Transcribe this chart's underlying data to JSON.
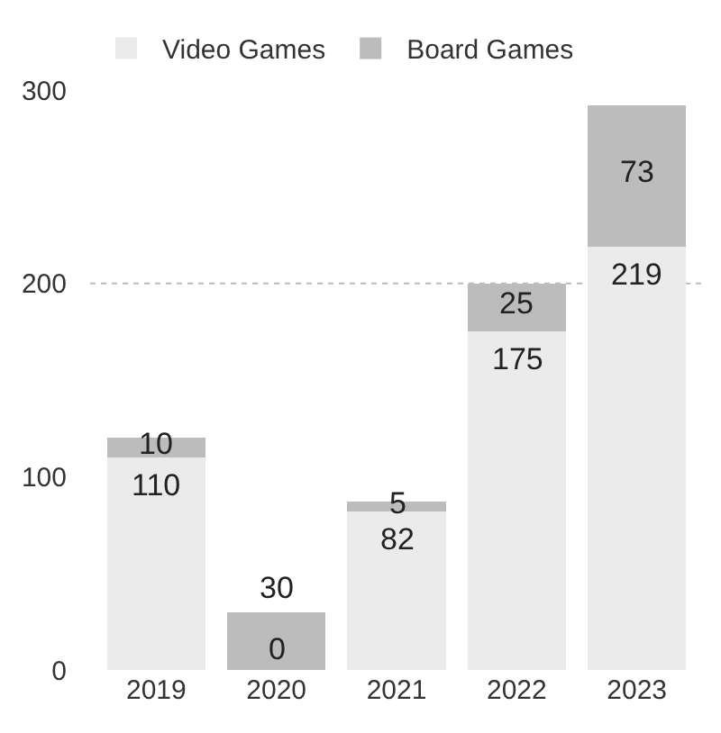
{
  "chart_data": {
    "type": "bar",
    "stacked": true,
    "categories": [
      "2019",
      "2020",
      "2021",
      "2022",
      "2023"
    ],
    "series": [
      {
        "name": "Video Games",
        "color": "#ebebeb",
        "values": [
          110,
          0,
          82,
          175,
          219
        ]
      },
      {
        "name": "Board Games",
        "color": "#bcbcbc",
        "values": [
          10,
          30,
          5,
          25,
          73
        ]
      }
    ],
    "ylim": [
      0,
      300
    ],
    "yticks": [
      0,
      100,
      200,
      300
    ],
    "grid": false,
    "legend": "top left",
    "data_labels": true,
    "ref_lines": [
      {
        "axis": "y",
        "value": 200,
        "color": "#bbbbbb",
        "line_style": "dotted"
      }
    ]
  }
}
